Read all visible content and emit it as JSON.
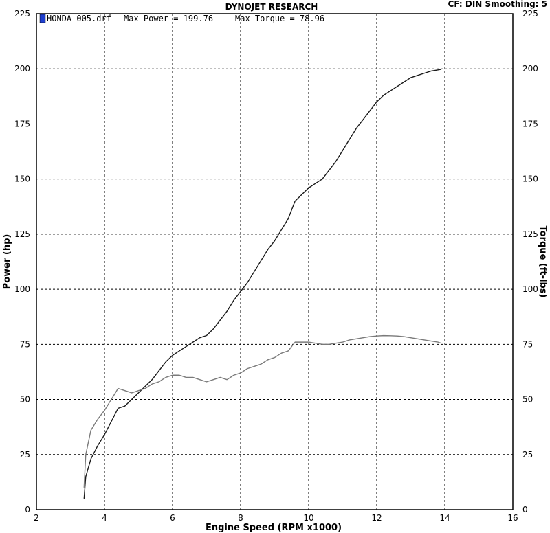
{
  "header": {
    "title": "DYNOJET RESEARCH",
    "settings": "CF: DIN  Smoothing: 5",
    "legend_file": "HONDA_005.drf",
    "max_power_text": "Max Power = 199.76",
    "max_torque_text": "Max Torque = 78.96",
    "legend_color": "#1f3fcf"
  },
  "chart_data": {
    "type": "line",
    "title": "DYNOJET RESEARCH",
    "xlabel": "Engine Speed (RPM x1000)",
    "ylabel": "Power (hp)",
    "y2label": "Torque (ft-lbs)",
    "xlim": [
      2,
      16
    ],
    "ylim": [
      0,
      225
    ],
    "y2lim": [
      0,
      225
    ],
    "x_ticks": [
      2,
      4,
      6,
      8,
      10,
      12,
      14,
      16
    ],
    "y_ticks": [
      0,
      25,
      50,
      75,
      100,
      125,
      150,
      175,
      200,
      225
    ],
    "y2_ticks": [
      0,
      25,
      50,
      75,
      100,
      125,
      150,
      175,
      200,
      225
    ],
    "grid": true,
    "series": [
      {
        "name": "Max Power = 199.76",
        "axis": "left",
        "color": "#1a1a1a",
        "x": [
          3.4,
          3.45,
          3.6,
          3.8,
          4.0,
          4.2,
          4.4,
          4.6,
          4.8,
          5.0,
          5.2,
          5.4,
          5.6,
          5.8,
          6.0,
          6.2,
          6.4,
          6.6,
          6.8,
          7.0,
          7.2,
          7.4,
          7.6,
          7.8,
          8.0,
          8.2,
          8.4,
          8.6,
          8.8,
          9.0,
          9.2,
          9.4,
          9.6,
          9.8,
          10.0,
          10.2,
          10.4,
          10.6,
          10.8,
          11.0,
          11.2,
          11.4,
          11.6,
          11.8,
          12.0,
          12.2,
          12.4,
          12.6,
          12.8,
          13.0,
          13.2,
          13.4,
          13.6,
          13.8,
          13.9
        ],
        "y": [
          5,
          15,
          23,
          29,
          34,
          40,
          46,
          47,
          50,
          53,
          56,
          59,
          63,
          67,
          70,
          72,
          74,
          76,
          78,
          79,
          82,
          86,
          90,
          95,
          99,
          103,
          108,
          113,
          118,
          122,
          127,
          132,
          140,
          143,
          146,
          148,
          150,
          154,
          158,
          163,
          168,
          173,
          177,
          181,
          185,
          188,
          190,
          192,
          194,
          196,
          197,
          198,
          199,
          199.5,
          199.76
        ]
      },
      {
        "name": "Max Torque = 78.96",
        "axis": "right",
        "color": "#7a7a7a",
        "x": [
          3.4,
          3.45,
          3.6,
          3.8,
          4.0,
          4.2,
          4.4,
          4.6,
          4.8,
          5.0,
          5.2,
          5.4,
          5.6,
          5.8,
          6.0,
          6.2,
          6.4,
          6.6,
          6.8,
          7.0,
          7.2,
          7.4,
          7.6,
          7.8,
          8.0,
          8.2,
          8.4,
          8.6,
          8.8,
          9.0,
          9.2,
          9.4,
          9.6,
          9.8,
          10.0,
          10.2,
          10.4,
          10.6,
          10.8,
          11.0,
          11.2,
          11.4,
          11.6,
          11.8,
          12.0,
          12.2,
          12.4,
          12.6,
          12.8,
          13.0,
          13.2,
          13.4,
          13.6,
          13.8,
          13.9
        ],
        "y": [
          10,
          25,
          36,
          41,
          45,
          50,
          55,
          54,
          53,
          54,
          55,
          57,
          58,
          60,
          61,
          61,
          60,
          60,
          59,
          58,
          59,
          60,
          59,
          61,
          62,
          64,
          65,
          66,
          68,
          69,
          71,
          72,
          76,
          76,
          76,
          75.5,
          75,
          75,
          75.5,
          76,
          77,
          77.5,
          78,
          78.5,
          78.8,
          78.96,
          78.9,
          78.8,
          78.5,
          78,
          77.5,
          77,
          76.5,
          76,
          75.5
        ]
      }
    ]
  }
}
